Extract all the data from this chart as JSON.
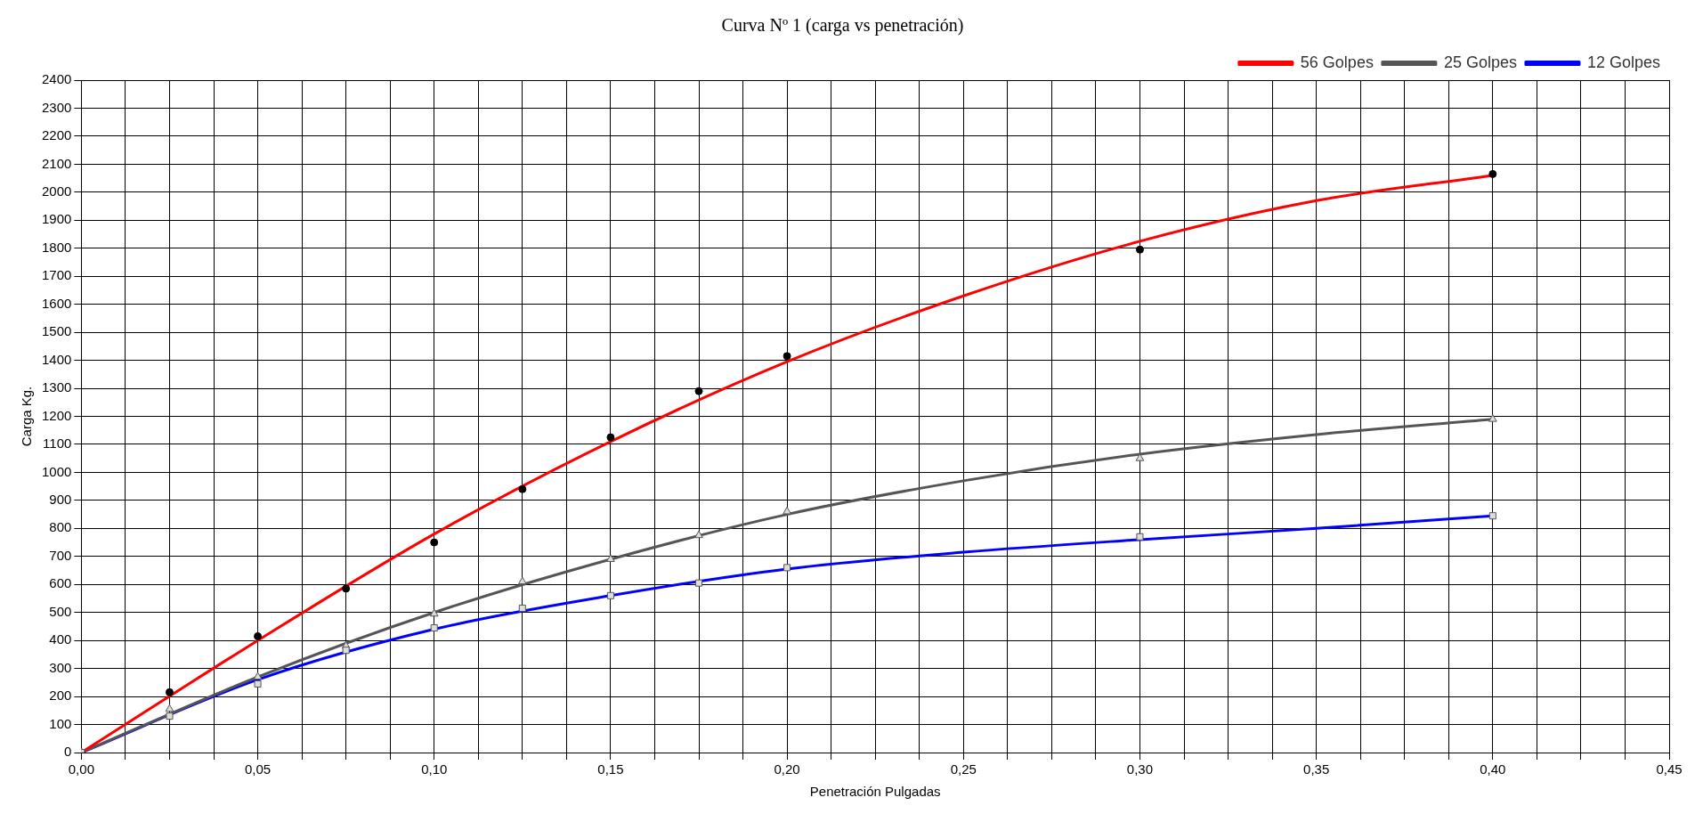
{
  "chart_data": {
    "type": "scatter",
    "title": "Curva Nº 1 (carga vs penetración)",
    "xlabel": "Penetración Pulgadas",
    "ylabel": "Carga Kg.",
    "xlim": [
      0,
      0.45
    ],
    "ylim": [
      0,
      2400
    ],
    "xticks": [
      {
        "value": 0,
        "label": "0,00"
      },
      {
        "value": 0.0125,
        "label": null
      },
      {
        "value": 0.025,
        "label": null
      },
      {
        "value": 0.0375,
        "label": null
      },
      {
        "value": 0.05,
        "label": "0,05"
      },
      {
        "value": 0.0625,
        "label": null
      },
      {
        "value": 0.075,
        "label": null
      },
      {
        "value": 0.0875,
        "label": null
      },
      {
        "value": 0.1,
        "label": "0,10"
      },
      {
        "value": 0.1125,
        "label": null
      },
      {
        "value": 0.125,
        "label": null
      },
      {
        "value": 0.1375,
        "label": null
      },
      {
        "value": 0.15,
        "label": "0,15"
      },
      {
        "value": 0.1625,
        "label": null
      },
      {
        "value": 0.175,
        "label": null
      },
      {
        "value": 0.1875,
        "label": null
      },
      {
        "value": 0.2,
        "label": "0,20"
      },
      {
        "value": 0.2125,
        "label": null
      },
      {
        "value": 0.225,
        "label": null
      },
      {
        "value": 0.2375,
        "label": null
      },
      {
        "value": 0.25,
        "label": "0,25"
      },
      {
        "value": 0.2625,
        "label": null
      },
      {
        "value": 0.275,
        "label": null
      },
      {
        "value": 0.2875,
        "label": null
      },
      {
        "value": 0.3,
        "label": "0,30"
      },
      {
        "value": 0.3125,
        "label": null
      },
      {
        "value": 0.325,
        "label": null
      },
      {
        "value": 0.3375,
        "label": null
      },
      {
        "value": 0.35,
        "label": "0,35"
      },
      {
        "value": 0.3625,
        "label": null
      },
      {
        "value": 0.375,
        "label": null
      },
      {
        "value": 0.3875,
        "label": null
      },
      {
        "value": 0.4,
        "label": "0,40"
      },
      {
        "value": 0.4125,
        "label": null
      },
      {
        "value": 0.425,
        "label": null
      },
      {
        "value": 0.4375,
        "label": null
      },
      {
        "value": 0.45,
        "label": "0,45"
      }
    ],
    "yticks": [
      0,
      100,
      200,
      300,
      400,
      500,
      600,
      700,
      800,
      900,
      1000,
      1100,
      1200,
      1300,
      1400,
      1500,
      1600,
      1700,
      1800,
      1900,
      2000,
      2100,
      2200,
      2300,
      2400
    ],
    "grid": true,
    "legend": "top right",
    "series": [
      {
        "type": "scatter",
        "color": "#555555",
        "marker": "square",
        "x": [
          0,
          0.025,
          0.05,
          0.075,
          0.1,
          0.125,
          0.15,
          0.175,
          0.2,
          0.3,
          0.4
        ],
        "values": [
          0,
          130,
          245,
          365,
          445,
          515,
          560,
          605,
          660,
          770,
          845
        ]
      },
      {
        "type": "scatter",
        "color": "#555555",
        "marker": "triangle",
        "x": [
          0,
          0.025,
          0.05,
          0.075,
          0.1,
          0.125,
          0.15,
          0.175,
          0.2,
          0.3,
          0.4
        ],
        "values": [
          0,
          155,
          270,
          380,
          495,
          610,
          690,
          775,
          860,
          1050,
          1190
        ]
      },
      {
        "type": "scatter",
        "color": "#000000",
        "marker": "circle",
        "x": [
          0,
          0.025,
          0.05,
          0.075,
          0.1,
          0.125,
          0.15,
          0.175,
          0.2,
          0.3,
          0.4
        ],
        "values": [
          0,
          215,
          415,
          585,
          750,
          940,
          1125,
          1290,
          1415,
          1795,
          2065
        ]
      },
      {
        "type": "line",
        "name": "56 Golpes",
        "color": "#ff0000",
        "marker": "none",
        "x": [
          0,
          0.05,
          0.1,
          0.15,
          0.2,
          0.25,
          0.3,
          0.35,
          0.4
        ],
        "values": [
          0,
          400,
          780,
          1110,
          1395,
          1630,
          1825,
          1970,
          2060
        ]
      },
      {
        "type": "line",
        "name": "25 Golpes",
        "color": "#555555",
        "marker": "none",
        "x": [
          0,
          0.05,
          0.1,
          0.15,
          0.2,
          0.25,
          0.3,
          0.35,
          0.4
        ],
        "values": [
          0,
          270,
          500,
          690,
          850,
          970,
          1065,
          1135,
          1190
        ]
      },
      {
        "type": "line",
        "name": "12 Golpes",
        "color": "#0000ff",
        "marker": "none",
        "x": [
          0,
          0.05,
          0.1,
          0.15,
          0.2,
          0.25,
          0.3,
          0.35,
          0.4
        ],
        "values": [
          0,
          260,
          440,
          560,
          655,
          715,
          760,
          800,
          845
        ]
      }
    ]
  }
}
